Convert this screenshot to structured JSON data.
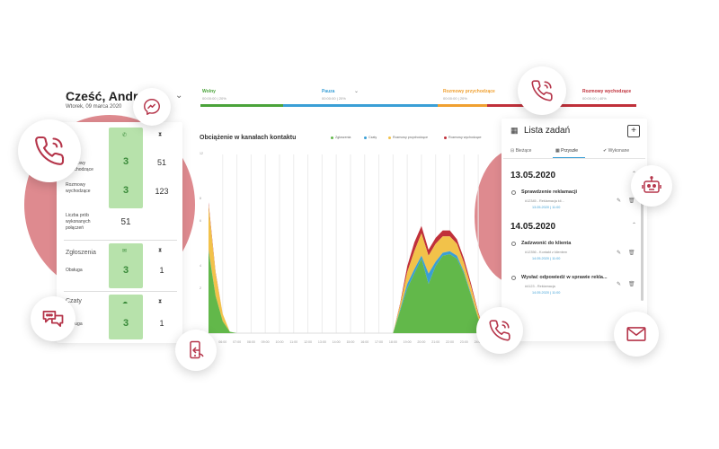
{
  "header": {
    "greeting": "Cześć, Andrzej",
    "date": "Wtorek, 09 marca 2020"
  },
  "statuses": [
    {
      "name": "Wolny",
      "time": "00:00:00 | 20%",
      "color": "#4aa33a"
    },
    {
      "name": "Pauza",
      "time": "00:00:00 | 20%",
      "color": "#3a9fd6"
    },
    {
      "name": "Rozmowy przychodzące",
      "time": "00:00:00 | 20%",
      "color": "#f0a030"
    },
    {
      "name": "Rozmowy wychodzące",
      "time": "00:00:00 | 40%",
      "color": "#c0303a"
    }
  ],
  "stats": {
    "calls": {
      "rows": [
        {
          "label": "Rozmowy przychodzące",
          "count": "3",
          "value": "51"
        },
        {
          "label": "Rozmowy wychodzące",
          "count": "3",
          "value": "123"
        }
      ],
      "attempts_label": "Liczba prób wykonanych połączeń",
      "attempts_value": "51"
    },
    "tickets": {
      "title": "Zgłoszenia",
      "row_label": "Obsługa",
      "count": "3",
      "value": "1"
    },
    "chats": {
      "title": "Czaty",
      "row_label": "Obsługa",
      "count": "3",
      "value": "1"
    }
  },
  "chart": {
    "title": "Obciążenie w kanałach kontaktu",
    "legend": [
      {
        "name": "Zgłoszenia",
        "color": "#62b84a"
      },
      {
        "name": "Czaty",
        "color": "#3a9fd6"
      },
      {
        "name": "Rozmowy przychodzące",
        "color": "#f2c24a"
      },
      {
        "name": "Rozmowy wychodzące",
        "color": "#c0303a"
      }
    ],
    "y_ticks": [
      "12",
      "8",
      "6",
      "4",
      "2",
      "0"
    ],
    "x_ticks": [
      "06:00",
      "07:00",
      "08:00",
      "09:00",
      "10:00",
      "11:00",
      "12:00",
      "13:00",
      "14:00",
      "15:00",
      "16:00",
      "17:00",
      "18:00",
      "19:00",
      "20:00",
      "21:00",
      "22:00",
      "23:00",
      "24:00"
    ]
  },
  "chart_data": {
    "type": "area",
    "title": "Obciążenie w kanałach kontaktu",
    "xlabel": "",
    "ylabel": "",
    "x": [
      5,
      5.5,
      6,
      6.5,
      7,
      8,
      9,
      10,
      11,
      12,
      13,
      14,
      15,
      16,
      17,
      18,
      18.5,
      19,
      19.5,
      20,
      20.5,
      21,
      21.5,
      22,
      22.5,
      23,
      23.5,
      24,
      24.5
    ],
    "ylim": [
      0,
      12
    ],
    "series": [
      {
        "name": "Zgłoszenia",
        "values": [
          5.5,
          2.5,
          0.8,
          0.1,
          0,
          0,
          0,
          0,
          0,
          0,
          0,
          0,
          0,
          0,
          0,
          0,
          1.5,
          3.0,
          4.0,
          5.0,
          3.3,
          4.5,
          5.2,
          5.3,
          5.0,
          4.0,
          2.5,
          1.0,
          0
        ]
      },
      {
        "name": "Czaty",
        "values": [
          0.1,
          0,
          0,
          0,
          0,
          0,
          0,
          0,
          0,
          0,
          0,
          0,
          0,
          0,
          0,
          0,
          0.1,
          0.3,
          0.3,
          0.2,
          0.7,
          0.3,
          0.2,
          0.2,
          0.2,
          0.1,
          0.1,
          0,
          0
        ]
      },
      {
        "name": "Rozmowy przychodzące",
        "values": [
          3.0,
          1.5,
          0.5,
          0,
          0,
          0,
          0,
          0,
          0,
          0,
          0,
          0,
          0,
          0,
          0,
          0,
          0.3,
          0.8,
          1.2,
          1.5,
          1.2,
          1.2,
          1.1,
          1.0,
          0.8,
          0.6,
          0.5,
          0.3,
          0
        ]
      },
      {
        "name": "Rozmowy wychodzące",
        "values": [
          0.2,
          0.1,
          0,
          0,
          0,
          0,
          0,
          0,
          0,
          0,
          0,
          0,
          0,
          0,
          0,
          0,
          0.1,
          0.4,
          0.6,
          0.5,
          0.4,
          0.4,
          0.4,
          0.4,
          0.3,
          0.3,
          0.2,
          0.1,
          0
        ]
      }
    ]
  },
  "tasks": {
    "title": "Lista zadań",
    "add_label": "+",
    "tabs": [
      "Bieżące",
      "Przyszłe",
      "Wykonane"
    ],
    "groups": [
      {
        "date": "13.05.2020",
        "items": [
          {
            "title": "Sprawdzenie reklamacji",
            "sub": "#12345 - Reklamacja kli...",
            "when": "13.05.2020 | 11:00"
          }
        ]
      },
      {
        "date": "14.05.2020",
        "items": [
          {
            "title": "Zadzwonić do klienta",
            "sub": "#12356 - Kontakt z klientem",
            "when": "14.05.2020 | 11:00"
          },
          {
            "title": "Wysłać odpowiedź w sprawie rekla...",
            "sub": "#4123 - Reklamacja",
            "when": "14.05.2020 | 11:00"
          }
        ]
      }
    ]
  },
  "icons": {
    "phone": "phone-icon",
    "messenger": "messenger-icon",
    "chat": "chat-bubbles-icon",
    "mobile": "mobile-app-icon",
    "bot": "robot-icon",
    "mail": "mail-icon"
  },
  "colors": {
    "accent": "#b5354a",
    "blob": "#de8a8f",
    "green_box": "#b7e2ab"
  }
}
